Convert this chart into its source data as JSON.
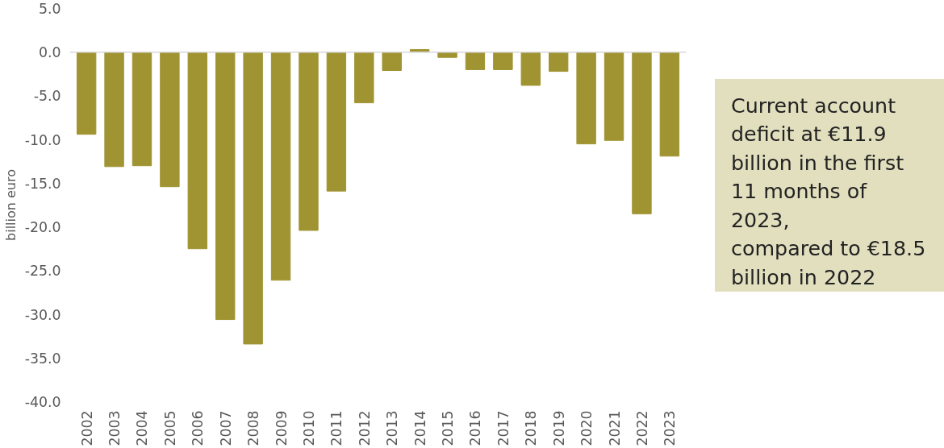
{
  "chart_data": {
    "type": "bar",
    "ylabel": "billion euro",
    "categories": [
      "2002",
      "2003",
      "2004",
      "2005",
      "2006",
      "2007",
      "2008",
      "2009",
      "2010",
      "2011",
      "2012",
      "2013",
      "2014",
      "2015",
      "2016",
      "2017",
      "2018",
      "2019",
      "2020",
      "2021",
      "2022",
      "2023"
    ],
    "values": [
      -9.4,
      -13.1,
      -13.0,
      -15.4,
      -22.5,
      -30.6,
      -33.4,
      -26.1,
      -20.4,
      -15.9,
      -5.8,
      -2.1,
      0.3,
      -0.6,
      -2.0,
      -2.0,
      -3.8,
      -2.2,
      -10.5,
      -10.1,
      -18.5,
      -11.9
    ],
    "color": "#a09432",
    "ylim": [
      -40,
      5
    ],
    "yticks": [
      {
        "value": -40,
        "label": "-40.0"
      },
      {
        "value": -35,
        "label": "-35.0"
      },
      {
        "value": -30,
        "label": "-30.0"
      },
      {
        "value": -25,
        "label": "-25.0"
      },
      {
        "value": -20,
        "label": "-20.0"
      },
      {
        "value": -15,
        "label": "-15.0"
      },
      {
        "value": -10,
        "label": "-10.0"
      },
      {
        "value": -5,
        "label": "-5.0"
      },
      {
        "value": 0,
        "label": "0.0"
      },
      {
        "value": 5,
        "label": "5.0"
      }
    ],
    "grid": false,
    "ref_lines": [
      {
        "axis": "y",
        "value": 0,
        "color": "#d9d9d9"
      }
    ],
    "annotations": [
      "Current account deficit at €11.9 billion in the first 11 months of 2023, compared to €18.5 billion in 2022"
    ]
  }
}
